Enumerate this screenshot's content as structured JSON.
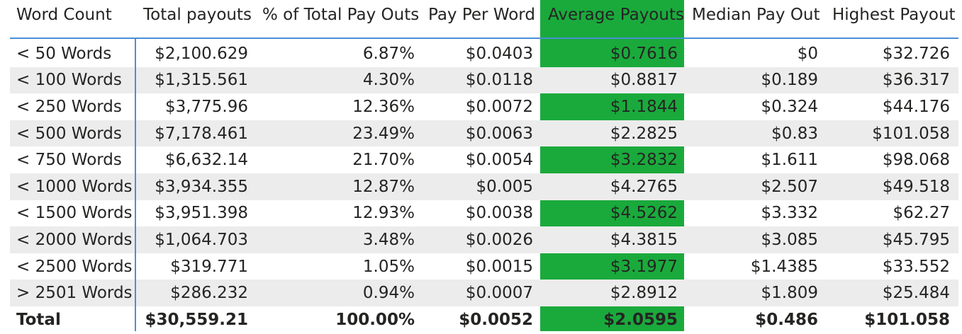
{
  "chart_data": {
    "type": "table",
    "highlight_color": "#1aaa3c",
    "highlight_column": "Average Payouts",
    "columns": [
      "Word Count",
      "Total payouts",
      "% of Total Pay Outs",
      "Pay Per Word",
      "Average Payouts",
      "Median Pay Out",
      "Highest Payout"
    ],
    "rows": [
      [
        "< 50 Words",
        "$2,100.629",
        "6.87%",
        "$0.0403",
        "$0.7616",
        "$0",
        "$32.726"
      ],
      [
        "< 100 Words",
        "$1,315.561",
        "4.30%",
        "$0.0118",
        "$0.8817",
        "$0.189",
        "$36.317"
      ],
      [
        "< 250 Words",
        "$3,775.96",
        "12.36%",
        "$0.0072",
        "$1.1844",
        "$0.324",
        "$44.176"
      ],
      [
        "< 500 Words",
        "$7,178.461",
        "23.49%",
        "$0.0063",
        "$2.2825",
        "$0.83",
        "$101.058"
      ],
      [
        "< 750 Words",
        "$6,632.14",
        "21.70%",
        "$0.0054",
        "$3.2832",
        "$1.611",
        "$98.068"
      ],
      [
        "< 1000 Words",
        "$3,934.355",
        "12.87%",
        "$0.005",
        "$4.2765",
        "$2.507",
        "$49.518"
      ],
      [
        "< 1500 Words",
        "$3,951.398",
        "12.93%",
        "$0.0038",
        "$4.5262",
        "$3.332",
        "$62.27"
      ],
      [
        "< 2000 Words",
        "$1,064.703",
        "3.48%",
        "$0.0026",
        "$4.3815",
        "$3.085",
        "$45.795"
      ],
      [
        "< 2500 Words",
        "$319.771",
        "1.05%",
        "$0.0015",
        "$3.1977",
        "$1.4385",
        "$33.552"
      ],
      [
        "> 2501 Words",
        "$286.232",
        "0.94%",
        "$0.0007",
        "$2.8912",
        "$1.809",
        "$25.484"
      ]
    ],
    "total": [
      "Total",
      "$30,559.21",
      "100.00%",
      "$0.0052",
      "$2.0595",
      "$0.486",
      "$101.058"
    ]
  }
}
